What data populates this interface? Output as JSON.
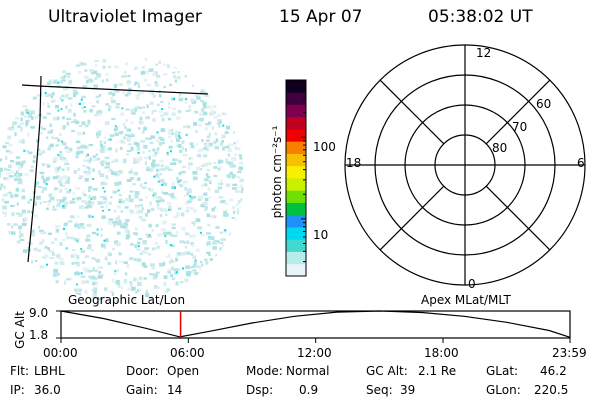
{
  "header": {
    "instrument": "Ultraviolet Imager",
    "date": "15 Apr 07",
    "time": "05:38:02 UT"
  },
  "colorbar": {
    "unit_label": "photon cm⁻²s⁻¹",
    "ticks": [
      {
        "label": "100",
        "value": 100
      },
      {
        "label": "10",
        "value": 10
      }
    ],
    "scale": "log",
    "range": [
      2,
      500
    ],
    "colors": [
      "#e8f4f8",
      "#b8ecec",
      "#40d8d0",
      "#00d8f0",
      "#2090f8",
      "#00c040",
      "#70e000",
      "#c8f000",
      "#f8f000",
      "#f8c000",
      "#f88000",
      "#f00000",
      "#c00020",
      "#800050",
      "#400040",
      "#100020"
    ]
  },
  "polar_plot": {
    "mlt_labels": [
      {
        "label": "12",
        "value": 12
      },
      {
        "label": "18",
        "value": 18
      },
      {
        "label": "6",
        "value": 6
      },
      {
        "label": "0",
        "value": 0
      }
    ],
    "lat_labels": [
      {
        "label": "60",
        "value": 60
      },
      {
        "label": "70",
        "value": 70
      },
      {
        "label": "80",
        "value": 80
      }
    ]
  },
  "timeline": {
    "left_label": "Geographic Lat/Lon",
    "right_label": "Apex MLat/MLT",
    "ylabel": "GC Alt",
    "y_ticks": [
      {
        "label": "9.0",
        "value": 9.0
      },
      {
        "label": "1.8",
        "value": 1.8
      }
    ],
    "x_ticks": [
      {
        "label": "00:00",
        "hour": 0
      },
      {
        "label": "06:00",
        "hour": 6
      },
      {
        "label": "12:00",
        "hour": 12
      },
      {
        "label": "18:00",
        "hour": 18
      },
      {
        "label": "23:59",
        "hour": 23.983
      }
    ],
    "current_hour": 5.634
  },
  "chart_data": {
    "type": "line",
    "title": "",
    "xlabel": "",
    "ylabel": "GC Alt",
    "xlim": [
      0,
      23.983
    ],
    "ylim": [
      1.8,
      9.0
    ],
    "series": [
      {
        "x": [
          0,
          2,
          4,
          5.6,
          7,
          9,
          11,
          13,
          15,
          17,
          19,
          21,
          23,
          23.983
        ],
        "y": [
          9.0,
          7.0,
          4.4,
          2.1,
          3.6,
          5.8,
          7.6,
          8.7,
          9.0,
          8.6,
          7.6,
          6.0,
          3.8,
          2.0
        ]
      }
    ]
  },
  "status": {
    "flt_label": "Flt:",
    "flt_value": "LBHL",
    "ip_label": "IP:",
    "ip_value": "36.0",
    "door_label": "Door:",
    "door_value": "Open",
    "gain_label": "Gain:",
    "gain_value": "14",
    "mode_label": "Mode:",
    "mode_value": "Normal",
    "dsp_label": "Dsp:",
    "dsp_value": "0.9",
    "gcalt_label": "GC Alt:",
    "gcalt_value": "2.1 Re",
    "seq_label": "Seq:",
    "seq_value": "39",
    "glat_label": "GLat:",
    "glat_value": "46.2",
    "glon_label": "GLon:",
    "glon_value": "220.5"
  }
}
